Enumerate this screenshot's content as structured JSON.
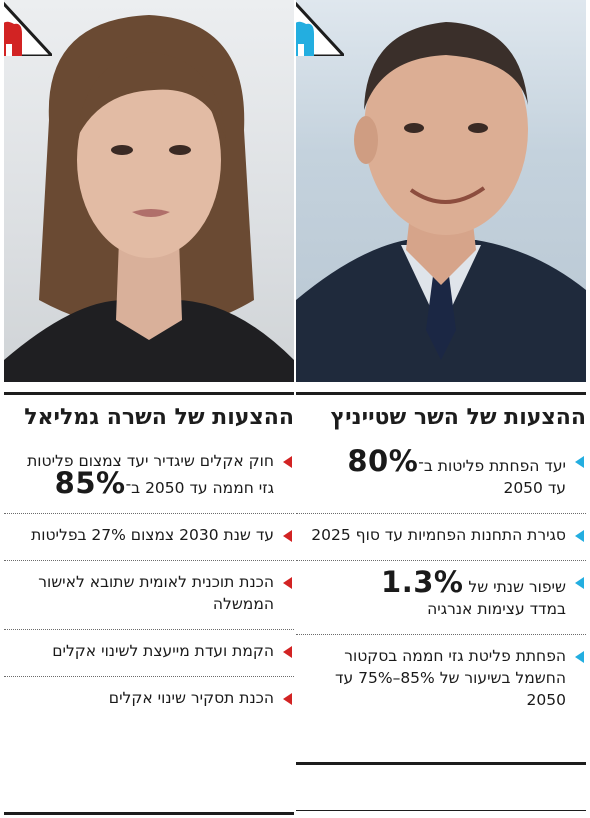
{
  "colors": {
    "accent_right": "#23aee0",
    "accent_left": "#d22323",
    "text": "#1d1d1d"
  },
  "right_column": {
    "title": "ההצעות של השר שטייניץ",
    "photo_icon": "man-portrait",
    "emblem_icon": "blue-factory-emblem-icon",
    "items": [
      {
        "pre": "יעד הפחתת פליטות ב־",
        "big": "80%",
        "post": "עד 2050"
      },
      {
        "pre": "סגירת התחנות הפחמיות עד סוף 2025",
        "big": "",
        "post": ""
      },
      {
        "pre": "שיפור שנתי של ",
        "big": "1.3%",
        "post": "במדד עצימות אנרגיה"
      },
      {
        "pre": "הפחתת פליטת גזי חממה בסקטור החשמל בשיעור של 85%–75% עד 2050",
        "big": "",
        "post": ""
      }
    ]
  },
  "left_column": {
    "title": "ההצעות של השרה גמליאל",
    "photo_icon": "woman-portrait",
    "emblem_icon": "red-factory-emblem-icon",
    "items": [
      {
        "pre": "חוק אקלים שיגדיר יעד צמצום פליטות גזי חממה עד 2050 ב־",
        "big": "85%",
        "post": ""
      },
      {
        "pre": "עד שנת 2030 צמצום 27% בפליטות",
        "big": "",
        "post": ""
      },
      {
        "pre": "הכנת תוכנית לאומית שתובא לאישור הממשלה",
        "big": "",
        "post": ""
      },
      {
        "pre": "הקמת ועדת מייעצת לשינוי אקלים",
        "big": "",
        "post": ""
      },
      {
        "pre": "הכנת תסקיר שינוי אקלים",
        "big": "",
        "post": ""
      }
    ]
  }
}
